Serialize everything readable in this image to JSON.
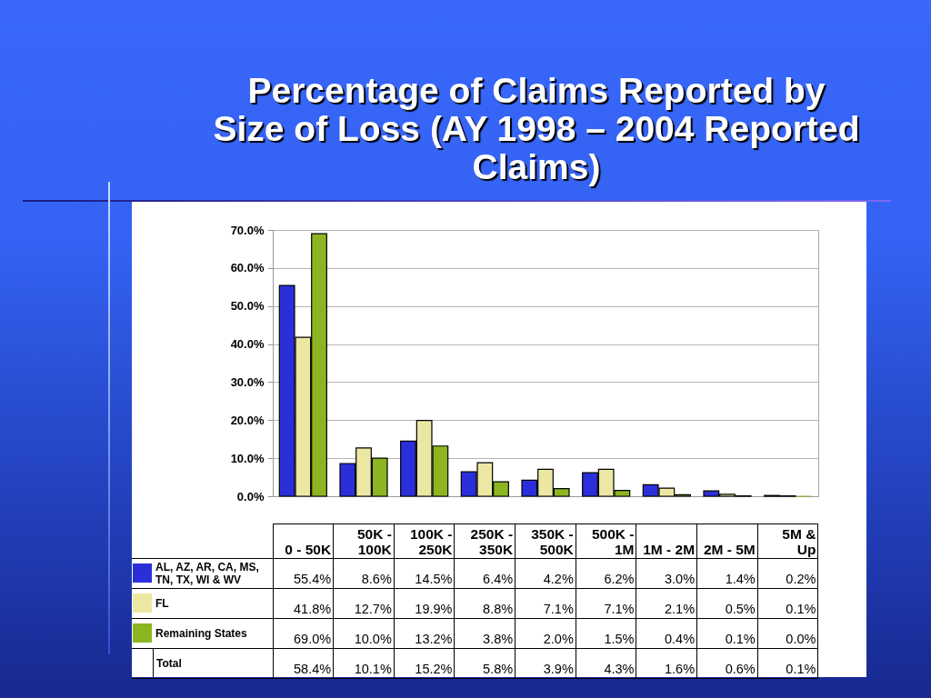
{
  "chart_data": {
    "type": "bar",
    "title": "Percentage of Claims Reported by Size of Loss (AY 1998 – 2004 Reported Claims)",
    "categories": [
      "0 - 50K",
      "50K - 100K",
      "100K - 250K",
      "250K - 350K",
      "350K - 500K",
      "500K - 1M",
      "1M - 2M",
      "2M - 5M",
      "5M & Up"
    ],
    "series": [
      {
        "name": "AL, AZ, AR, CA, MS, TN, TX, WI & WV",
        "color": "#2b2fd9",
        "values": [
          55.4,
          8.6,
          14.5,
          6.4,
          4.2,
          6.2,
          3.0,
          1.4,
          0.2
        ],
        "value_labels": [
          "55.4%",
          "8.6%",
          "14.5%",
          "6.4%",
          "4.2%",
          "6.2%",
          "3.0%",
          "1.4%",
          "0.2%"
        ]
      },
      {
        "name": "FL",
        "color": "#ece8a4",
        "values": [
          41.8,
          12.7,
          19.9,
          8.8,
          7.1,
          7.1,
          2.1,
          0.5,
          0.1
        ],
        "value_labels": [
          "41.8%",
          "12.7%",
          "19.9%",
          "8.8%",
          "7.1%",
          "7.1%",
          "2.1%",
          "0.5%",
          "0.1%"
        ]
      },
      {
        "name": "Remaining States",
        "color": "#8db522",
        "values": [
          69.0,
          10.0,
          13.2,
          3.8,
          2.0,
          1.5,
          0.4,
          0.1,
          0.0
        ],
        "value_labels": [
          "69.0%",
          "10.0%",
          "13.2%",
          "3.8%",
          "2.0%",
          "1.5%",
          "0.4%",
          "0.1%",
          "0.0%"
        ]
      }
    ],
    "annotations": [
      "Total",
      "58.4%",
      "10.1%",
      "15.2%",
      "5.8%",
      "3.9%",
      "4.3%",
      "1.6%",
      "0.6%",
      "0.1%"
    ],
    "ylim": [
      0,
      70
    ],
    "yticks": [
      {
        "value": 0,
        "label": "0.0%"
      },
      {
        "value": 10,
        "label": "10.0%"
      },
      {
        "value": 20,
        "label": "20.0%"
      },
      {
        "value": 30,
        "label": "30.0%"
      },
      {
        "value": 40,
        "label": "40.0%"
      },
      {
        "value": 50,
        "label": "50.0%"
      },
      {
        "value": 60,
        "label": "60.0%"
      },
      {
        "value": 70,
        "label": "70.0%"
      }
    ],
    "grid": "y",
    "legend": "bottom left"
  }
}
